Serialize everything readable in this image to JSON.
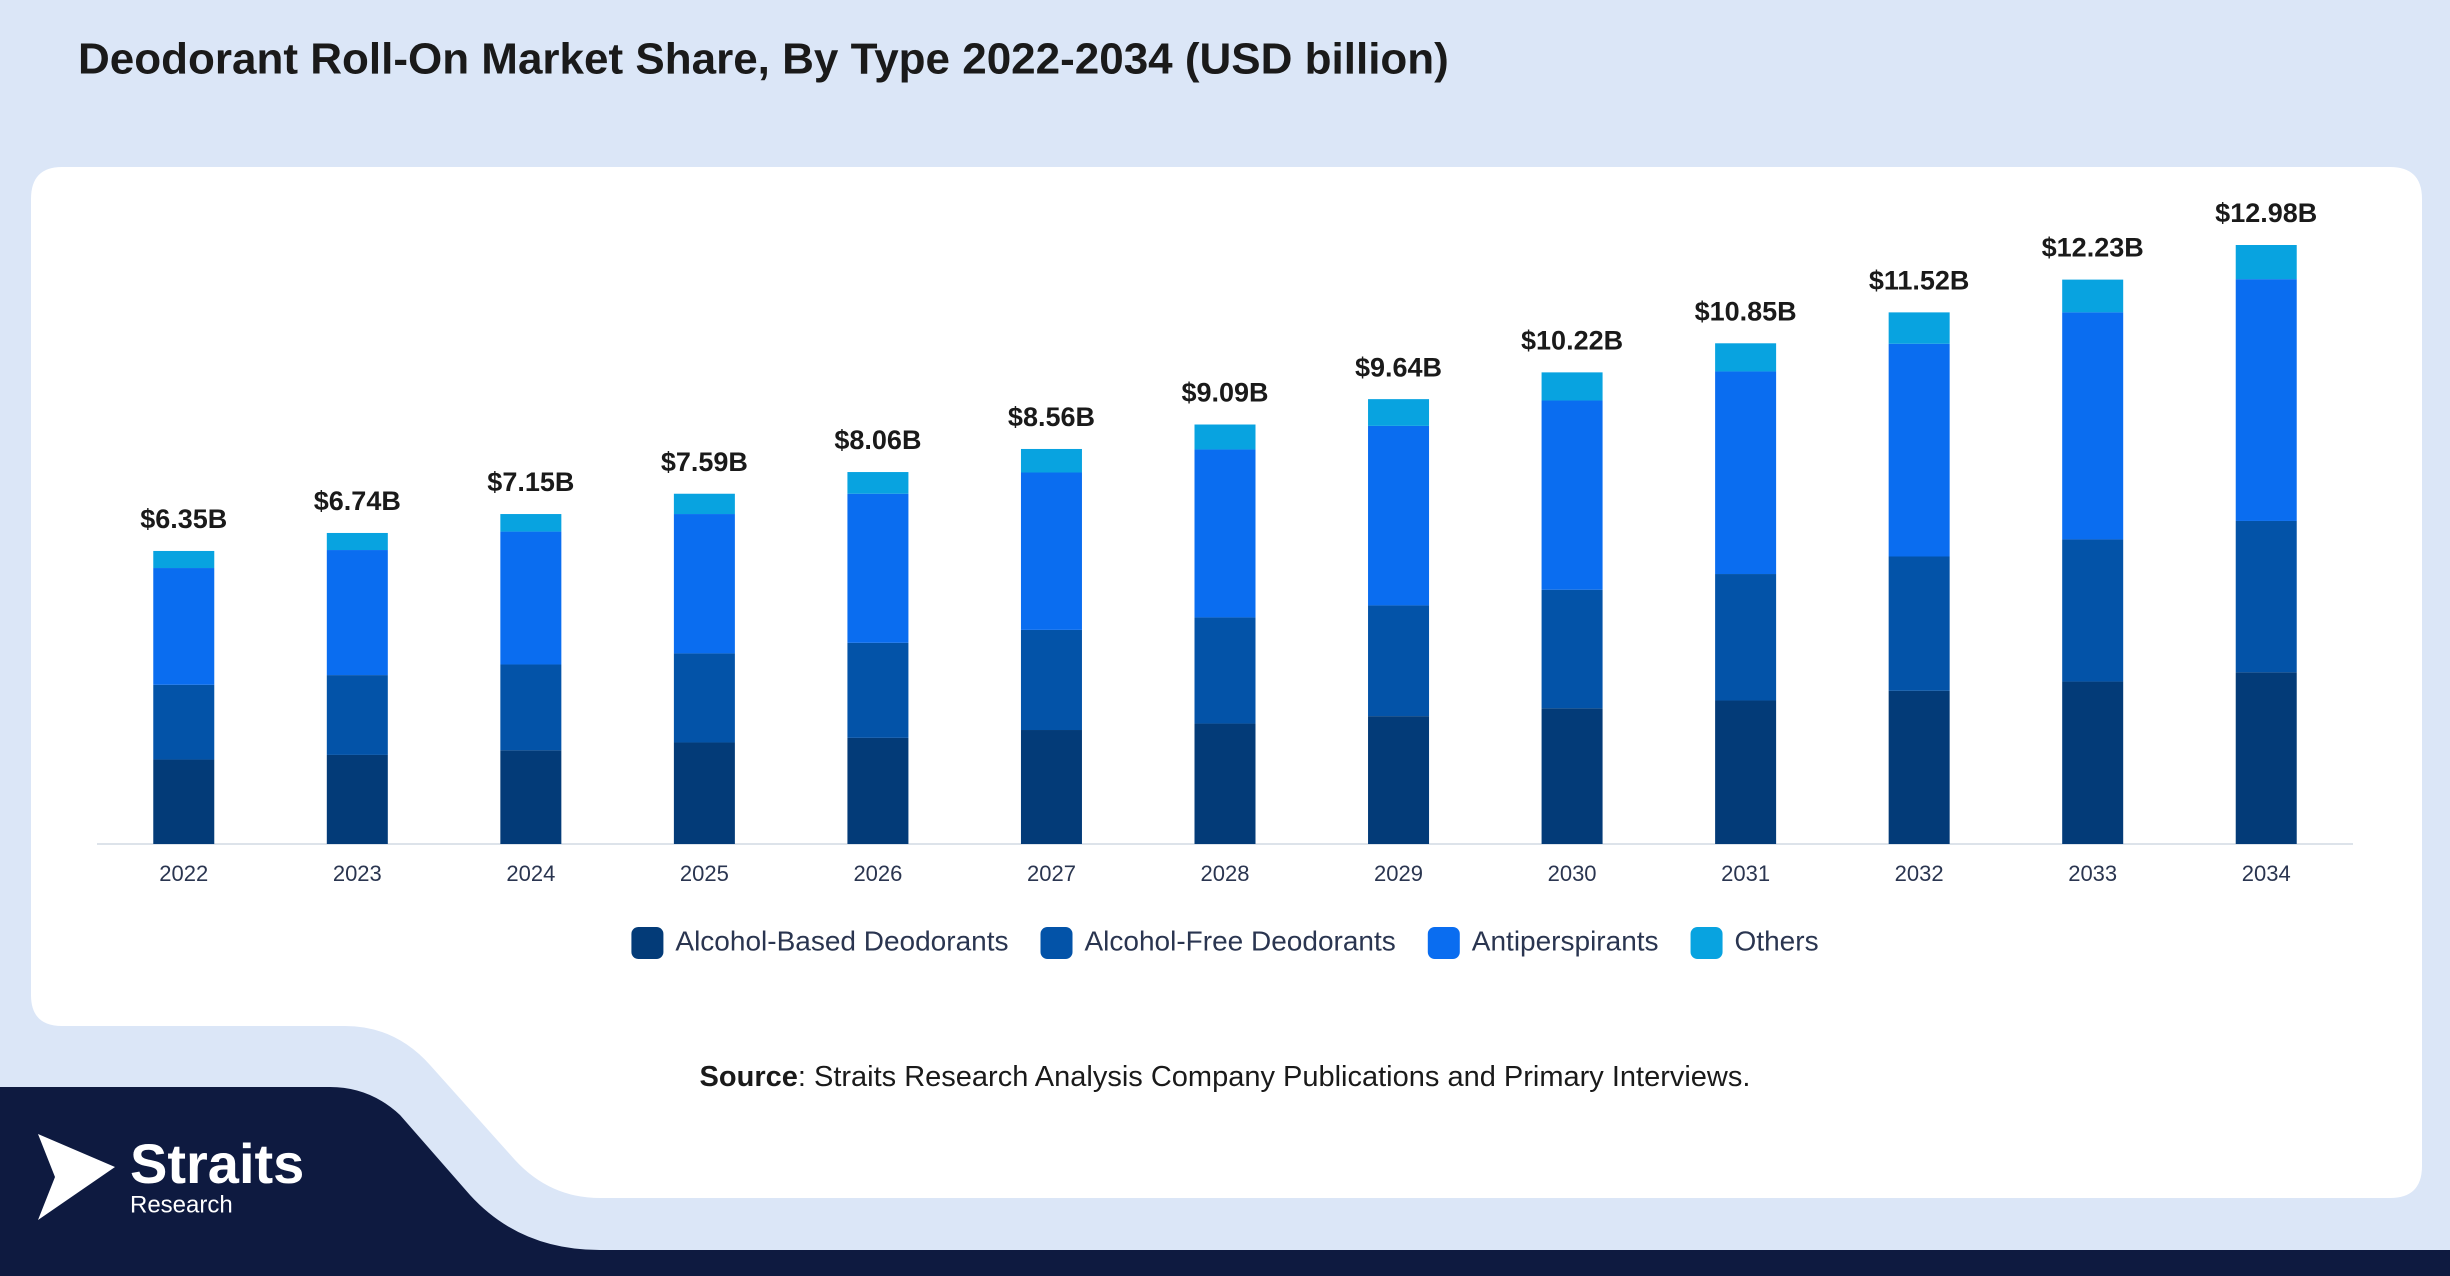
{
  "chart_data": {
    "type": "stacked-bar",
    "title": "Deodorant Roll-On Market Share, By Type 2022-2034 (USD billion)",
    "categories": [
      "2022",
      "2023",
      "2024",
      "2025",
      "2026",
      "2027",
      "2028",
      "2029",
      "2030",
      "2031",
      "2032",
      "2033",
      "2034"
    ],
    "series": [
      {
        "name": "Alcohol-Based Deodorants",
        "color": "#033b78",
        "values": [
          1.83,
          1.93,
          2.03,
          2.2,
          2.3,
          2.47,
          2.61,
          2.77,
          2.94,
          3.11,
          3.32,
          3.52,
          3.72
        ]
      },
      {
        "name": "Alcohol-Free Deodorants",
        "color": "#0353a8",
        "values": [
          1.62,
          1.73,
          1.86,
          1.93,
          2.06,
          2.17,
          2.3,
          2.4,
          2.57,
          2.74,
          2.91,
          3.08,
          3.28
        ]
      },
      {
        "name": "Antiperspirants",
        "color": "#0a6df0",
        "values": [
          2.53,
          2.71,
          2.88,
          3.02,
          3.23,
          3.41,
          3.64,
          3.89,
          4.1,
          4.39,
          4.61,
          4.92,
          5.24
        ]
      },
      {
        "name": "Others",
        "color": "#08a3e0",
        "values": [
          0.37,
          0.37,
          0.38,
          0.44,
          0.47,
          0.51,
          0.54,
          0.58,
          0.61,
          0.61,
          0.68,
          0.71,
          0.74
        ]
      }
    ],
    "totals": [
      6.35,
      6.74,
      7.15,
      7.59,
      8.06,
      8.56,
      9.09,
      9.64,
      10.22,
      10.85,
      11.52,
      12.23,
      12.98
    ],
    "total_value_labels": [
      "$6.35B",
      "$6.74B",
      "$7.15B",
      "$7.59B",
      "$8.06B",
      "$8.56B",
      "$9.09B",
      "$9.64B",
      "$10.22B",
      "$10.85B",
      "$11.52B",
      "$12.23B",
      "$12.98B"
    ],
    "legend": "bottom"
  },
  "source": {
    "label": "Source",
    "text": ": Straits Research Analysis Company Publications and Primary Interviews."
  },
  "logo": {
    "name": "Straits",
    "sub": "Research"
  }
}
